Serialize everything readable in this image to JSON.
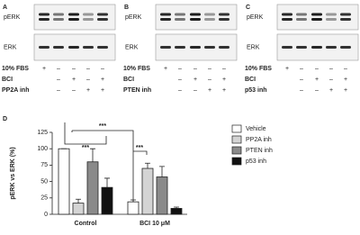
{
  "blots": [
    {
      "letter": "A",
      "bands": [
        "pERK",
        "ERK"
      ],
      "rows": [
        {
          "label": "10% FBS",
          "signs": [
            "+",
            "–",
            "–",
            "–",
            "–"
          ]
        },
        {
          "label": "BCI",
          "signs": [
            null,
            "–",
            "+",
            "–",
            "+"
          ]
        },
        {
          "label": "PP2A inh",
          "signs": [
            null,
            "–",
            "–",
            "+",
            "+"
          ]
        }
      ]
    },
    {
      "letter": "B",
      "bands": [
        "pERK",
        "ERK"
      ],
      "rows": [
        {
          "label": "10% FBS",
          "signs": [
            "+",
            "–",
            "–",
            "–",
            "–"
          ]
        },
        {
          "label": "BCI",
          "signs": [
            null,
            "–",
            "+",
            "–",
            "+"
          ]
        },
        {
          "label": "PTEN inh",
          "signs": [
            null,
            "–",
            "–",
            "+",
            "+"
          ]
        }
      ]
    },
    {
      "letter": "C",
      "bands": [
        "pERK",
        "ERK"
      ],
      "rows": [
        {
          "label": "10% FBS",
          "signs": [
            "+",
            "–",
            "–",
            "–",
            "–"
          ]
        },
        {
          "label": "BCI",
          "signs": [
            null,
            "–",
            "+",
            "–",
            "+"
          ]
        },
        {
          "label": "p53 inh",
          "signs": [
            null,
            "–",
            "–",
            "+",
            "+"
          ]
        }
      ]
    }
  ],
  "chart_data": {
    "type": "bar",
    "letter": "D",
    "ylabel": "pERK vs ERK (%)",
    "categories": [
      "Control",
      "BCI 10 μM"
    ],
    "ylim": [
      0,
      125
    ],
    "yticks": [
      0,
      25,
      50,
      75,
      100,
      125
    ],
    "series": [
      {
        "name": "Vehicle",
        "color": "#ffffff",
        "values": [
          100,
          19
        ],
        "errors": [
          0,
          3
        ]
      },
      {
        "name": "PP2A inh",
        "color": "#d4d4d4",
        "values": [
          17,
          70
        ],
        "errors": [
          6,
          8
        ]
      },
      {
        "name": "PTEN inh",
        "color": "#8a8a8a",
        "values": [
          80,
          57
        ],
        "errors": [
          20,
          16
        ]
      },
      {
        "name": "p53 inh",
        "color": "#111111",
        "values": [
          41,
          9
        ],
        "errors": [
          14,
          2
        ]
      }
    ],
    "annotations": [
      "***",
      "***",
      "***"
    ]
  }
}
